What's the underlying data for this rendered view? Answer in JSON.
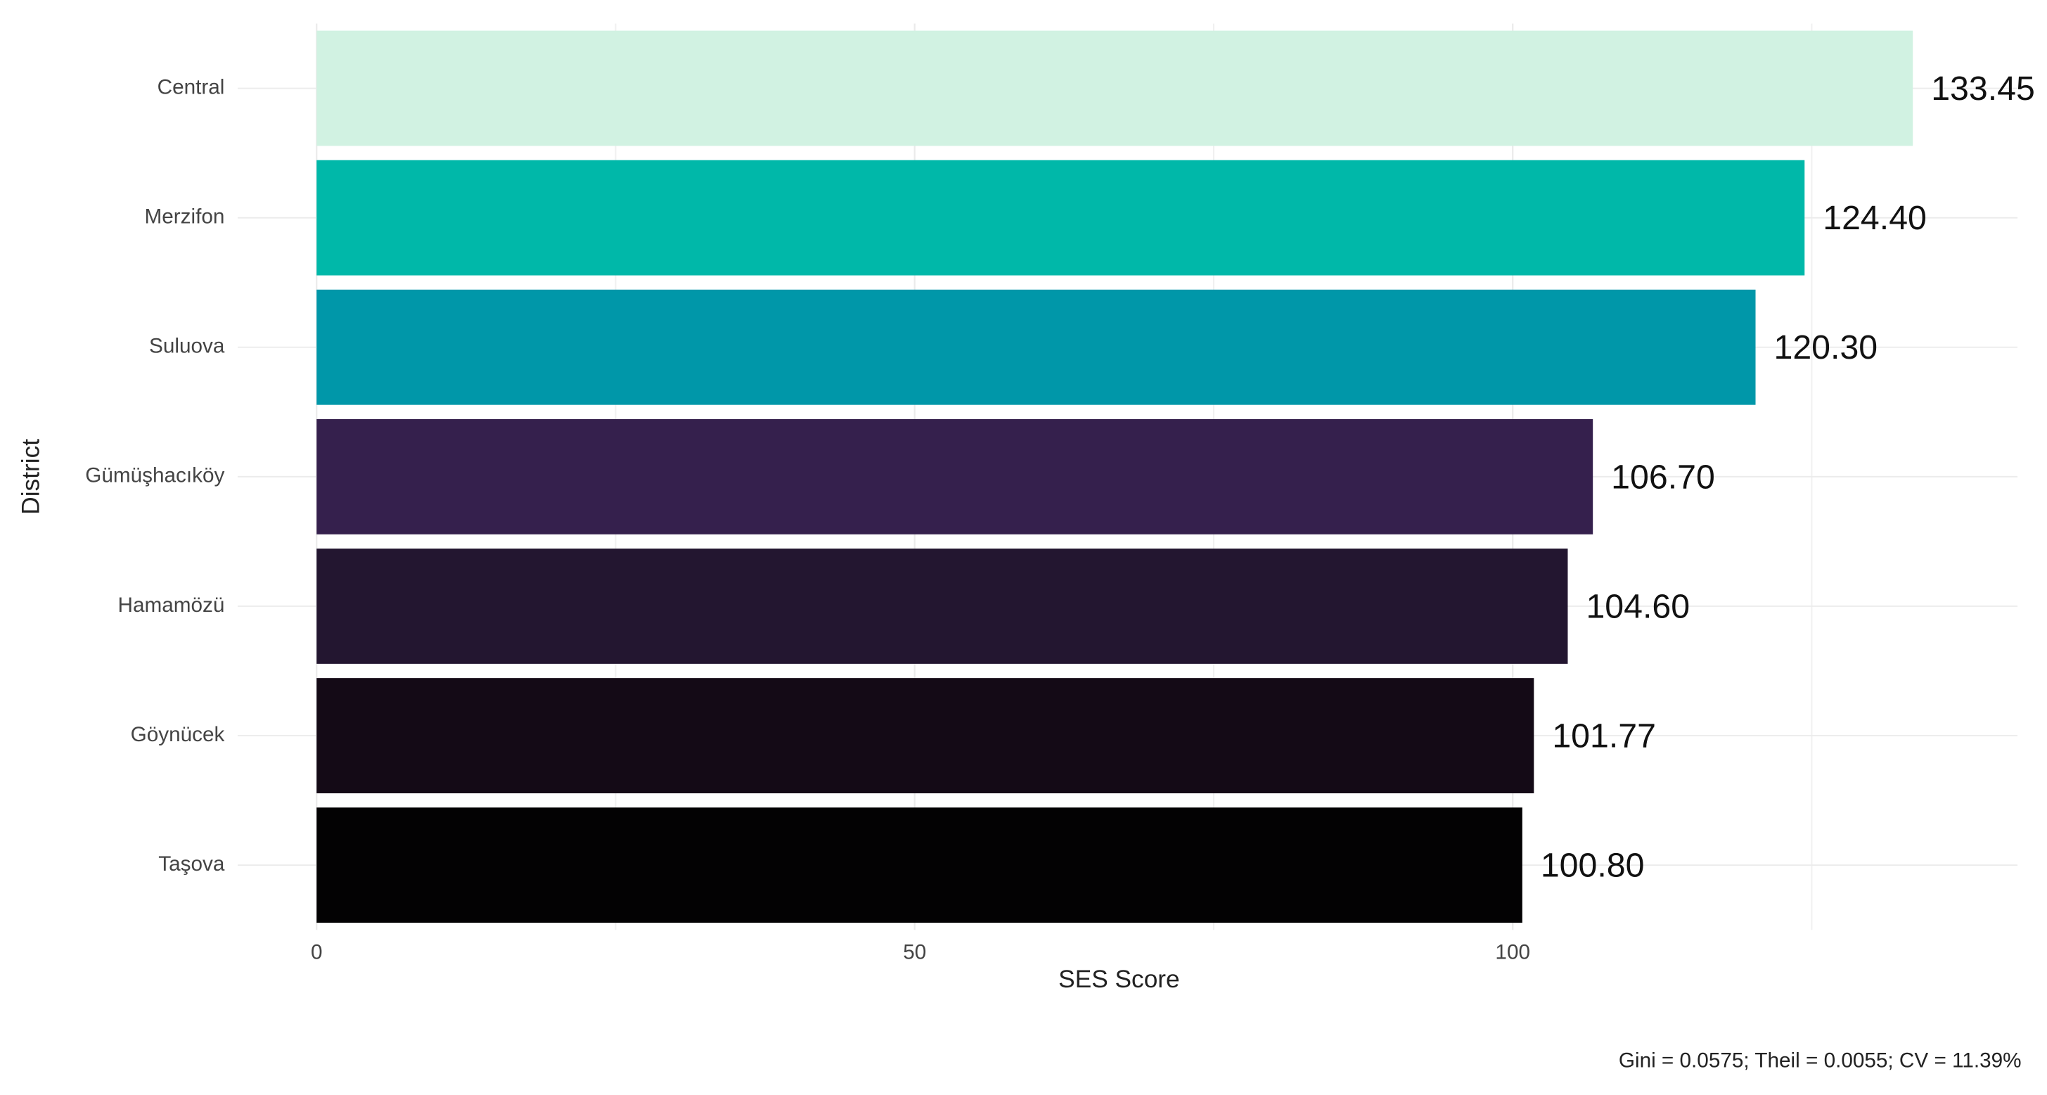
{
  "chart_data": {
    "type": "barh",
    "categories": [
      "Central",
      "Merzifon",
      "Suluova",
      "Gümüşhacıköy",
      "Hamamözü",
      "Göynücek",
      "Taşova"
    ],
    "values": [
      133.45,
      124.4,
      120.3,
      106.7,
      104.6,
      101.77,
      100.8
    ],
    "value_labels": [
      "133.45",
      "124.40",
      "120.30",
      "106.70",
      "104.60",
      "101.77",
      "100.80"
    ],
    "colors": [
      "#d1f2e2",
      "#00b8a9",
      "#0097a9",
      "#35204d",
      "#231630",
      "#140a16",
      "#030203"
    ],
    "xlabel": "SES Score",
    "ylabel": "District",
    "xlim": [
      -6.6,
      142.2
    ],
    "xticks": [
      0,
      50,
      100
    ],
    "minor_xticks": [
      25,
      75,
      125
    ],
    "grid": true,
    "caption": "Gini = 0.0575; Theil = 0.0055; CV = 11.39%"
  }
}
